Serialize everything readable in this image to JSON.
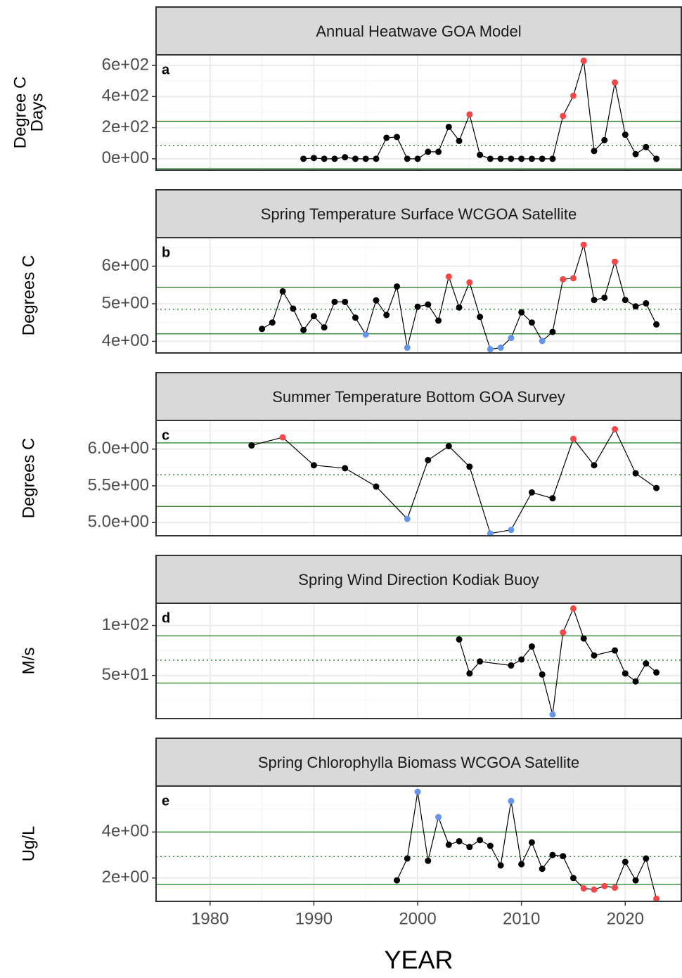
{
  "chart_data": [
    {
      "type": "line",
      "title": "Annual Heatwave GOA Model",
      "label": "a",
      "ylabel": [
        "Degree C",
        "Days"
      ],
      "x": [
        1989,
        1990,
        1991,
        1992,
        1993,
        1994,
        1995,
        1996,
        1997,
        1998,
        1999,
        2000,
        2001,
        2002,
        2003,
        2004,
        2005,
        2006,
        2007,
        2008,
        2009,
        2010,
        2011,
        2012,
        2013,
        2014,
        2015,
        2016,
        2017,
        2018,
        2019,
        2020,
        2021,
        2022,
        2023
      ],
      "values": [
        0,
        5,
        0,
        0,
        10,
        0,
        0,
        0,
        135,
        140,
        0,
        0,
        45,
        45,
        205,
        115,
        285,
        25,
        0,
        0,
        0,
        0,
        0,
        0,
        0,
        275,
        405,
        630,
        50,
        120,
        490,
        155,
        30,
        75,
        0
      ],
      "colors": [
        "#000000",
        "#000000",
        "#000000",
        "#000000",
        "#000000",
        "#000000",
        "#000000",
        "#000000",
        "#000000",
        "#000000",
        "#000000",
        "#000000",
        "#000000",
        "#000000",
        "#000000",
        "#000000",
        "#f4474a",
        "#000000",
        "#000000",
        "#000000",
        "#000000",
        "#000000",
        "#000000",
        "#000000",
        "#000000",
        "#f4474a",
        "#f4474a",
        "#f4474a",
        "#000000",
        "#000000",
        "#f4474a",
        "#000000",
        "#000000",
        "#000000",
        "#000000"
      ],
      "reference_lines": {
        "upper": 241,
        "mean": 86,
        "lower": -64
      },
      "reference_color": "#1e7b1e",
      "xlim": [
        1974.8,
        2025.4
      ],
      "xticks": [
        1980,
        1990,
        2000,
        2010,
        2020
      ],
      "ylim": [
        -73,
        668
      ],
      "yticks": [
        {
          "value": 0,
          "label": "0e+00"
        },
        {
          "value": 200,
          "label": "2e+02"
        },
        {
          "value": 400,
          "label": "4e+02"
        },
        {
          "value": 600,
          "label": "6e+02"
        }
      ],
      "grid": true
    },
    {
      "type": "line",
      "title": "Spring Temperature Surface WCGOA Satellite",
      "label": "b",
      "ylabel": [
        "Degrees C"
      ],
      "x": [
        1985,
        1986,
        1987,
        1988,
        1989,
        1990,
        1991,
        1992,
        1993,
        1994,
        1995,
        1996,
        1997,
        1998,
        1999,
        2000,
        2001,
        2002,
        2003,
        2004,
        2005,
        2006,
        2007,
        2008,
        2009,
        2010,
        2011,
        2012,
        2013,
        2014,
        2015,
        2016,
        2017,
        2018,
        2019,
        2020,
        2021,
        2022,
        2023
      ],
      "values": [
        4.33,
        4.5,
        5.33,
        4.87,
        4.3,
        4.67,
        4.37,
        5.05,
        5.05,
        4.63,
        4.18,
        5.09,
        4.7,
        5.46,
        3.83,
        4.92,
        4.98,
        4.55,
        5.72,
        4.9,
        5.57,
        4.65,
        3.79,
        3.83,
        4.09,
        4.77,
        4.5,
        4.01,
        4.25,
        5.65,
        5.68,
        6.57,
        5.1,
        5.16,
        6.12,
        5.1,
        4.93,
        5.01,
        4.45
      ],
      "colors": [
        "#000000",
        "#000000",
        "#000000",
        "#000000",
        "#000000",
        "#000000",
        "#000000",
        "#000000",
        "#000000",
        "#000000",
        "#6495ed",
        "#000000",
        "#000000",
        "#000000",
        "#6495ed",
        "#000000",
        "#000000",
        "#000000",
        "#f4474a",
        "#000000",
        "#f4474a",
        "#000000",
        "#6495ed",
        "#6495ed",
        "#6495ed",
        "#000000",
        "#000000",
        "#6495ed",
        "#000000",
        "#f4474a",
        "#f4474a",
        "#f4474a",
        "#000000",
        "#000000",
        "#f4474a",
        "#000000",
        "#000000",
        "#000000",
        "#000000"
      ],
      "reference_lines": {
        "upper": 5.44,
        "mean": 4.85,
        "lower": 4.2
      },
      "reference_color": "#1e7b1e",
      "xlim": [
        1974.8,
        2025.4
      ],
      "xticks": [
        1980,
        1990,
        2000,
        2010,
        2020
      ],
      "ylim": [
        3.69,
        6.76
      ],
      "yticks": [
        {
          "value": 4,
          "label": "4e+00"
        },
        {
          "value": 5,
          "label": "5e+00"
        },
        {
          "value": 6,
          "label": "6e+00"
        }
      ],
      "grid": true
    },
    {
      "type": "line",
      "title": "Summer Temperature Bottom GOA Survey",
      "label": "c",
      "ylabel": [
        "Degrees C"
      ],
      "x": [
        1984,
        1987,
        1990,
        1993,
        1996,
        1999,
        2001,
        2003,
        2005,
        2007,
        2009,
        2011,
        2013,
        2015,
        2017,
        2019,
        2021,
        2023
      ],
      "values": [
        6.05,
        6.16,
        5.78,
        5.74,
        5.49,
        5.05,
        5.85,
        6.04,
        5.76,
        4.85,
        4.9,
        5.41,
        5.33,
        6.14,
        5.78,
        6.27,
        5.67,
        5.47
      ],
      "colors": [
        "#000000",
        "#f4474a",
        "#000000",
        "#000000",
        "#000000",
        "#6495ed",
        "#000000",
        "#000000",
        "#000000",
        "#6495ed",
        "#6495ed",
        "#000000",
        "#000000",
        "#f4474a",
        "#000000",
        "#f4474a",
        "#000000",
        "#000000"
      ],
      "reference_lines": {
        "upper": 6.085,
        "mean": 5.65,
        "lower": 5.22
      },
      "reference_color": "#1e7b1e",
      "xlim": [
        1974.8,
        2025.4
      ],
      "xticks": [
        1980,
        1990,
        2000,
        2010,
        2020
      ],
      "ylim": [
        4.82,
        6.39
      ],
      "yticks": [
        {
          "value": 5,
          "label": "5.0e+00"
        },
        {
          "value": 5.5,
          "label": "5.5e+00"
        },
        {
          "value": 6,
          "label": "6.0e+00"
        }
      ],
      "grid": true
    },
    {
      "type": "line",
      "title": "Spring Wind Direction Kodiak Buoy",
      "label": "d",
      "ylabel": [
        "M/s"
      ],
      "x": [
        2004,
        2005,
        2006,
        2009,
        2010,
        2011,
        2012,
        2013,
        2014,
        2015,
        2016,
        2017,
        2019,
        2020,
        2021,
        2022,
        2023
      ],
      "values": [
        86,
        52,
        64,
        60,
        66,
        79,
        51,
        11,
        93,
        117,
        87,
        70,
        75,
        52,
        44,
        62,
        53
      ],
      "colors": [
        "#000000",
        "#000000",
        "#000000",
        "#000000",
        "#000000",
        "#000000",
        "#000000",
        "#6495ed",
        "#f4474a",
        "#f4474a",
        "#000000",
        "#000000",
        "#000000",
        "#000000",
        "#000000",
        "#000000",
        "#000000"
      ],
      "reference_lines": {
        "upper": 89.6,
        "mean": 65.3,
        "lower": 42.4
      },
      "reference_color": "#1e7b1e",
      "xlim": [
        1974.8,
        2025.4
      ],
      "xticks": [
        1980,
        1990,
        2000,
        2010,
        2020
      ],
      "ylim": [
        6.9,
        122.2
      ],
      "yticks": [
        {
          "value": 50,
          "label": "5e+01"
        },
        {
          "value": 100,
          "label": "1e+02"
        }
      ],
      "grid": true
    },
    {
      "type": "line",
      "title": "Spring Chlorophylla Biomass WCGOA Satellite",
      "label": "e",
      "ylabel": [
        "Ug/L"
      ],
      "xlabel": "YEAR",
      "x": [
        1998,
        1999,
        2000,
        2001,
        2002,
        2003,
        2004,
        2005,
        2006,
        2007,
        2008,
        2009,
        2010,
        2011,
        2012,
        2013,
        2014,
        2015,
        2016,
        2017,
        2018,
        2019,
        2020,
        2021,
        2022,
        2023
      ],
      "values": [
        1.9,
        2.85,
        5.75,
        2.75,
        4.65,
        3.45,
        3.6,
        3.35,
        3.65,
        3.4,
        2.55,
        5.35,
        2.6,
        3.55,
        2.4,
        3.0,
        2.95,
        2.0,
        1.55,
        1.5,
        1.65,
        1.58,
        2.7,
        1.9,
        2.85,
        1.1
      ],
      "colors": [
        "#000000",
        "#000000",
        "#6495ed",
        "#000000",
        "#6495ed",
        "#000000",
        "#000000",
        "#000000",
        "#000000",
        "#000000",
        "#000000",
        "#6495ed",
        "#000000",
        "#000000",
        "#000000",
        "#000000",
        "#000000",
        "#000000",
        "#f4474a",
        "#f4474a",
        "#f4474a",
        "#f4474a",
        "#000000",
        "#000000",
        "#000000",
        "#f4474a"
      ],
      "reference_lines": {
        "upper": 4.0,
        "mean": 2.93,
        "lower": 1.73
      },
      "reference_color": "#1e7b1e",
      "xlim": [
        1974.8,
        2025.4
      ],
      "xticks": [
        1980,
        1990,
        2000,
        2010,
        2020
      ],
      "ylim": [
        0.985,
        6.0
      ],
      "yticks": [
        {
          "value": 2,
          "label": "2e+00"
        },
        {
          "value": 4,
          "label": "4e+00"
        }
      ],
      "grid": true
    }
  ]
}
